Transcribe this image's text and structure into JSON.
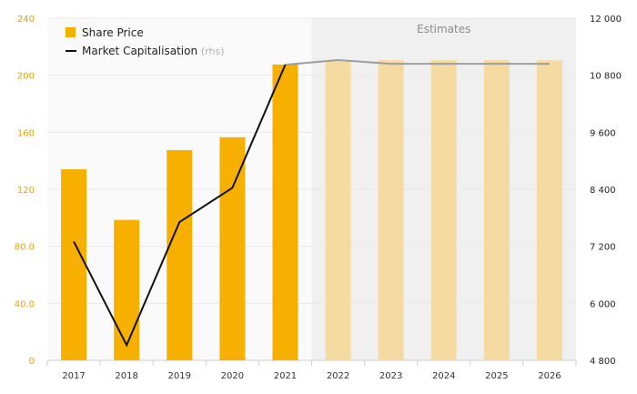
{
  "chart_data": {
    "type": "bar",
    "categories": [
      "2017",
      "2018",
      "2019",
      "2020",
      "2021",
      "2022",
      "2023",
      "2024",
      "2025",
      "2026"
    ],
    "series": [
      {
        "name": "Share Price",
        "type": "bar",
        "axis": "left",
        "values": [
          134,
          98.5,
          147.5,
          156.5,
          207.5,
          210.5,
          210.5,
          210.5,
          210.5,
          210.5
        ]
      },
      {
        "name": "Market Capitalisation",
        "name_suffix": "(rhs)",
        "type": "line",
        "axis": "right",
        "values": [
          7300,
          5120,
          7710,
          8430,
          11020,
          11120,
          11040,
          11040,
          11040,
          11040
        ]
      }
    ],
    "estimate_label": "Estimates",
    "estimate_categories": [
      "2022",
      "2023",
      "2024",
      "2025",
      "2026"
    ],
    "y_left": {
      "range": [
        0,
        240
      ],
      "ticks": [
        "0",
        "40.0",
        "80.0",
        "120",
        "160",
        "200",
        "240"
      ]
    },
    "y_right": {
      "range": [
        4800,
        12000
      ],
      "ticks": [
        "4 800",
        "6 000",
        "7 200",
        "8 400",
        "9 600",
        "10 800",
        "12 000"
      ]
    },
    "legend_position": "top-left",
    "colors": {
      "bar": "#F8B000",
      "bar_estimate": "#F5DBA2",
      "line": "#111111",
      "line_estimate": "#9E9E9E",
      "estimate_band": "#F0F0F0",
      "left_tick": "#E8A400"
    }
  }
}
